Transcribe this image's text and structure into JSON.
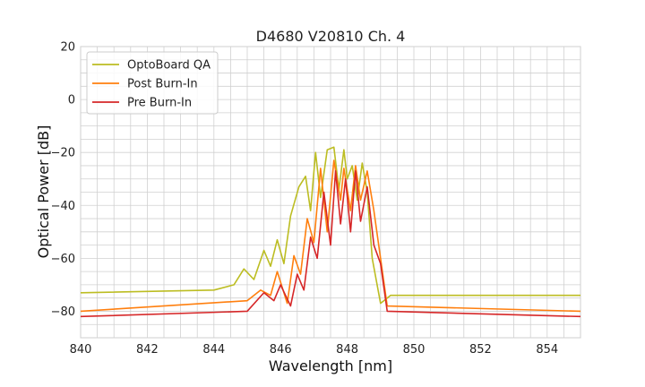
{
  "chart_data": {
    "type": "line",
    "title": "D4680 V20810 Ch. 4",
    "xlabel": "Wavelength [nm]",
    "ylabel": "Optical Power [dB]",
    "xlim": [
      840,
      855
    ],
    "ylim": [
      -90,
      20
    ],
    "xticks": [
      "840",
      "842",
      "844",
      "846",
      "848",
      "850",
      "852",
      "854"
    ],
    "yticks": [
      "20",
      "0",
      "−20",
      "−40",
      "−60",
      "−80"
    ],
    "grid": true,
    "legend_position": "top-left",
    "series": [
      {
        "name": "OptoBoard QA",
        "color": "#bcbd22",
        "x": [
          840.0,
          844.0,
          844.6,
          844.9,
          845.2,
          845.5,
          845.7,
          845.9,
          846.1,
          846.3,
          846.55,
          846.75,
          846.9,
          847.05,
          847.2,
          847.4,
          847.6,
          847.75,
          847.9,
          848.0,
          848.15,
          848.3,
          848.45,
          848.6,
          848.75,
          849.0,
          849.3,
          855.0
        ],
        "y": [
          -73,
          -72,
          -70,
          -64,
          -68,
          -57,
          -63,
          -53,
          -62,
          -44,
          -33,
          -29,
          -42,
          -20,
          -37,
          -19,
          -18,
          -34,
          -19,
          -30,
          -25,
          -38,
          -24,
          -35,
          -60,
          -77,
          -74,
          -74
        ]
      },
      {
        "name": "Post Burn-In",
        "color": "#ff7f0e",
        "x": [
          840.0,
          845.0,
          845.4,
          845.7,
          845.9,
          846.2,
          846.4,
          846.6,
          846.8,
          847.0,
          847.2,
          847.4,
          847.6,
          847.8,
          847.9,
          848.1,
          848.25,
          848.4,
          848.6,
          848.8,
          849.0,
          849.2,
          855.0
        ],
        "y": [
          -80,
          -76,
          -72,
          -74,
          -65,
          -77,
          -59,
          -66,
          -45,
          -54,
          -26,
          -50,
          -23,
          -38,
          -26,
          -42,
          -25,
          -38,
          -27,
          -42,
          -60,
          -78,
          -80
        ]
      },
      {
        "name": "Pre Burn-In",
        "color": "#d62728",
        "x": [
          840.0,
          845.0,
          845.5,
          845.8,
          846.0,
          846.3,
          846.5,
          846.7,
          846.9,
          847.1,
          847.3,
          847.5,
          847.65,
          847.8,
          847.95,
          848.1,
          848.25,
          848.4,
          848.6,
          848.8,
          849.0,
          849.2,
          855.0
        ],
        "y": [
          -82,
          -80,
          -73,
          -76,
          -70,
          -78,
          -66,
          -72,
          -52,
          -60,
          -35,
          -55,
          -27,
          -47,
          -30,
          -50,
          -27,
          -46,
          -33,
          -55,
          -62,
          -80,
          -82
        ]
      }
    ]
  }
}
